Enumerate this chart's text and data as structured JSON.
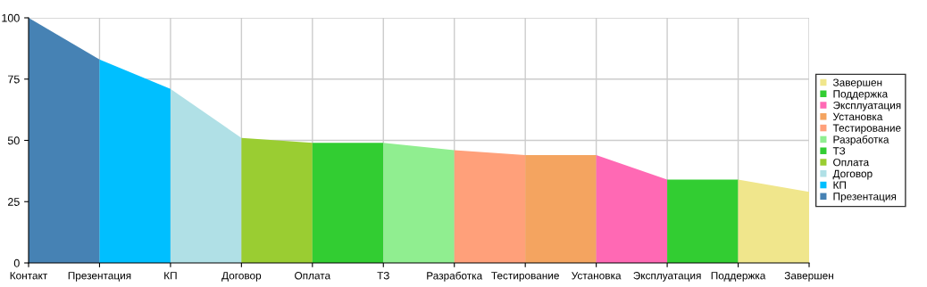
{
  "chart_data": {
    "type": "area",
    "categories": [
      "Контакт",
      "Презентация",
      "КП",
      "Договор",
      "Оплата",
      "ТЗ",
      "Разработка",
      "Тестирование",
      "Установка",
      "Эксплуатация",
      "Поддержка",
      "Завершен"
    ],
    "series": [
      {
        "name": "Презентация",
        "color": "#4682b4",
        "values": [
          100,
          83,
          null,
          null,
          null,
          null,
          null,
          null,
          null,
          null,
          null,
          null
        ]
      },
      {
        "name": "КП",
        "color": "#00bfff",
        "values": [
          null,
          83,
          71,
          null,
          null,
          null,
          null,
          null,
          null,
          null,
          null,
          null
        ]
      },
      {
        "name": "Договор",
        "color": "#b0e0e6",
        "values": [
          null,
          null,
          71,
          51,
          null,
          null,
          null,
          null,
          null,
          null,
          null,
          null
        ]
      },
      {
        "name": "Оплата",
        "color": "#9acd32",
        "values": [
          null,
          null,
          null,
          51,
          49,
          null,
          null,
          null,
          null,
          null,
          null,
          null
        ]
      },
      {
        "name": "ТЗ",
        "color": "#32cd32",
        "values": [
          null,
          null,
          null,
          null,
          49,
          49,
          null,
          null,
          null,
          null,
          null,
          null
        ]
      },
      {
        "name": "Разработка",
        "color": "#90ee90",
        "values": [
          null,
          null,
          null,
          null,
          null,
          49,
          46,
          null,
          null,
          null,
          null,
          null
        ]
      },
      {
        "name": "Тестирование",
        "color": "#ffa07a",
        "values": [
          null,
          null,
          null,
          null,
          null,
          null,
          46,
          44,
          null,
          null,
          null,
          null
        ]
      },
      {
        "name": "Установка",
        "color": "#f4a460",
        "values": [
          null,
          null,
          null,
          null,
          null,
          null,
          null,
          44,
          44,
          null,
          null,
          null
        ]
      },
      {
        "name": "Эксплуатация",
        "color": "#ff69b4",
        "values": [
          null,
          null,
          null,
          null,
          null,
          null,
          null,
          null,
          44,
          34,
          null,
          null
        ]
      },
      {
        "name": "Поддержка",
        "color": "#32cd32",
        "values": [
          null,
          null,
          null,
          null,
          null,
          null,
          null,
          null,
          null,
          34,
          34,
          null
        ]
      },
      {
        "name": "Завершен",
        "color": "#f0e68c",
        "values": [
          null,
          null,
          null,
          null,
          null,
          null,
          null,
          null,
          null,
          null,
          34,
          29
        ]
      }
    ],
    "ylim": [
      0,
      100
    ],
    "yticks": [
      0,
      25,
      50,
      75,
      100
    ],
    "grid": true,
    "legend": "right"
  }
}
